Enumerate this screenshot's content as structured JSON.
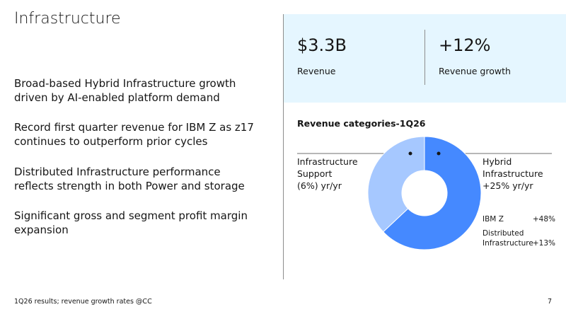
{
  "title": "Infrastructure",
  "bullets": [
    "Broad-based Hybrid Infrastructure growth driven by AI-enabled platform demand",
    "Record first quarter revenue for IBM Z as z17 continues to outperform prior cycles",
    "Distributed Infrastructure performance reflects strength in both Power and storage",
    "Significant gross and segment profit margin expansion"
  ],
  "kpis": [
    {
      "value": "$3.3B",
      "label": "Revenue"
    },
    {
      "value": "+12%",
      "label": "Revenue growth"
    }
  ],
  "chart_data": {
    "type": "pie",
    "donut": true,
    "title": "Revenue categories-1Q26",
    "categories": [
      "Hybrid Infrastructure",
      "Infrastructure Support"
    ],
    "values": [
      63,
      37
    ],
    "colors": [
      "#4589ff",
      "#a6c8ff"
    ],
    "growth_labels": [
      "+25% yr/yr",
      "(6%) yr/yr"
    ],
    "breakdown": [
      {
        "label": "IBM Z",
        "growth": "+48%"
      },
      {
        "label": "Distributed Infrastructure",
        "growth": "+13%"
      }
    ]
  },
  "footnote": "1Q26 results; revenue growth rates @CC",
  "page_number": "7"
}
